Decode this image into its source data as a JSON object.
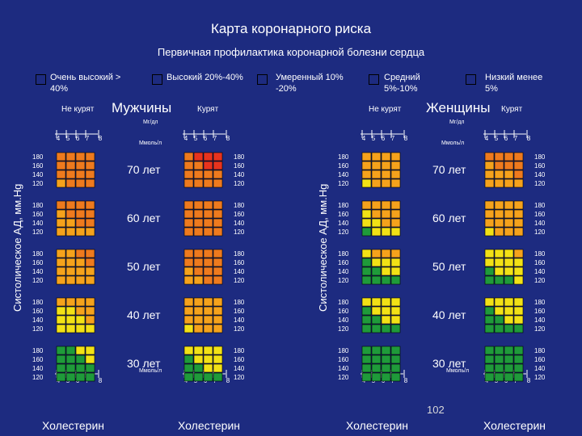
{
  "title": "Карта коронарного риска",
  "subtitle": "Первичная профилактика коронарной болезни сердца",
  "legend": [
    {
      "label": "Очень высокий > 40%",
      "color": "#e8331e"
    },
    {
      "label": "Высокий 20%-40%",
      "color": "#ee7a1e"
    },
    {
      "label": "Умеренный 10% -20%",
      "color": "#f5a21c"
    },
    {
      "label": "Средний 5%-10%",
      "color": "#f2e116"
    },
    {
      "label": "Низкий менее 5%",
      "color": "#1f9a3a"
    }
  ],
  "labels": {
    "men": "Мужчины",
    "women": "Женщины",
    "nonsmoker": "Не курят",
    "smoker": "Курят",
    "mgdl": "Мг/дл",
    "mmol": "Ммоль/л",
    "sbp_axis": "Систолическое АД, мм.Hg",
    "cholesterol": "Холестерин",
    "page_number": "102"
  },
  "chart_data": {
    "type": "heatmap",
    "cholesterol_ticks": [
      "4",
      "5",
      "6",
      "7",
      "8"
    ],
    "sbp_ticks": [
      "180",
      "160",
      "140",
      "120"
    ],
    "ages": [
      "70 лет",
      "60 лет",
      "50 лет",
      "40 лет",
      "30 лет"
    ],
    "color_key": {
      "R": "Очень высокий > 40%",
      "O": "Высокий 20%-40%",
      "A": "Умеренный 10% -20%",
      "Y": "Средний 5%-10%",
      "G": "Низкий менее 5%"
    },
    "panels": [
      {
        "sex": "Мужчины",
        "smoking": "Не курят",
        "grids": [
          [
            "OOOO",
            "OOOO",
            "OOOO",
            "AOOO"
          ],
          [
            "OOOO",
            "AOOO",
            "AAOO",
            "AAAA"
          ],
          [
            "AAOO",
            "AAAO",
            "AAAA",
            "AAAA"
          ],
          [
            "AAAA",
            "YYAA",
            "YYYA",
            "YYYY"
          ],
          [
            "GGYY",
            "GGGY",
            "GGGG",
            "GGGG"
          ]
        ]
      },
      {
        "sex": "Мужчины",
        "smoking": "Курят",
        "grids": [
          [
            "ORRR",
            "OORR",
            "OOOO",
            "OOOO"
          ],
          [
            "OOOO",
            "OOOO",
            "OOOO",
            "OOOO"
          ],
          [
            "OOOO",
            "OOOO",
            "AOOO",
            "AAOO"
          ],
          [
            "AAAA",
            "AAAA",
            "AAAA",
            "YAAA"
          ],
          [
            "YYYY",
            "GYYY",
            "GGYY",
            "GGGG"
          ]
        ]
      },
      {
        "sex": "Женщины",
        "smoking": "Не курят",
        "grids": [
          [
            "AAAA",
            "AAAA",
            "AAAA",
            "YAAA"
          ],
          [
            "AAAA",
            "YAAA",
            "YYAA",
            "GYYY"
          ],
          [
            "YAAA",
            "GYYY",
            "GGYY",
            "GGGG"
          ],
          [
            "YYYY",
            "GYYY",
            "GGYY",
            "GGGG"
          ],
          [
            "GGGG",
            "GGGG",
            "GGGG",
            "GGGG"
          ]
        ]
      },
      {
        "sex": "Женщины",
        "smoking": "Курят",
        "grids": [
          [
            "OOOO",
            "AOOO",
            "AAAO",
            "AAAA"
          ],
          [
            "AAAA",
            "AAAA",
            "AAAA",
            "YAAA"
          ],
          [
            "YYYA",
            "YYYY",
            "GYYY",
            "GGGY"
          ],
          [
            "YYYY",
            "GYYY",
            "GGYY",
            "GGGG"
          ],
          [
            "GGGG",
            "GGGG",
            "GGGG",
            "GGGG"
          ]
        ]
      }
    ]
  }
}
